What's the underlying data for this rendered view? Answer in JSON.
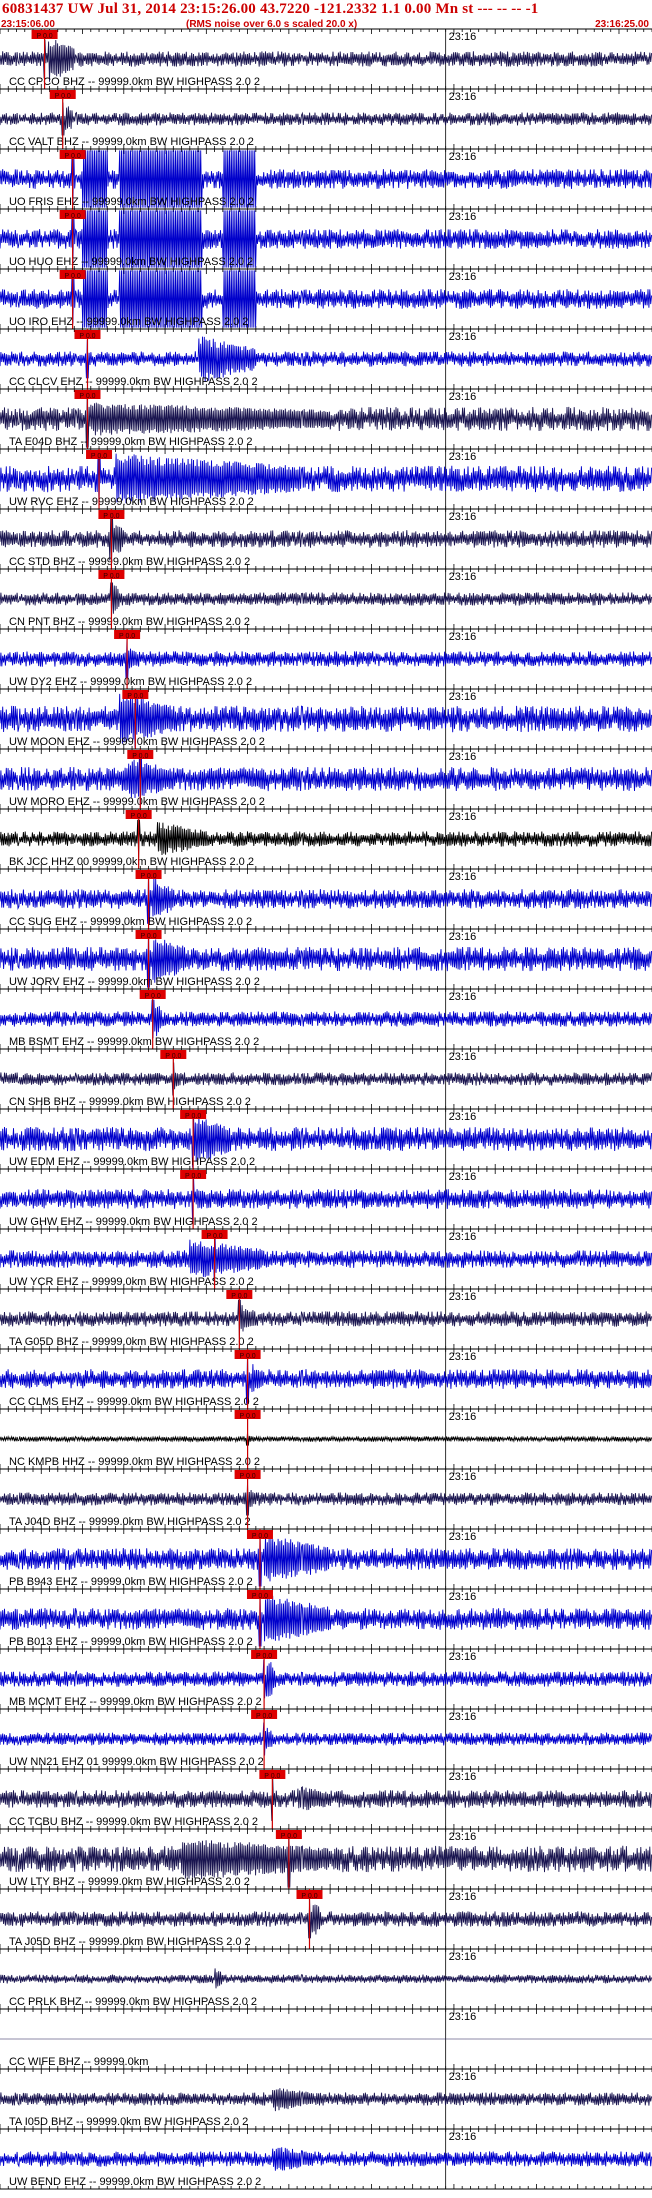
{
  "header": {
    "title": "60831437 UW Jul 31, 2014 23:15:26.00   43.7220 -121.2332  1.1 0.00 Mn st --- -- --   -1",
    "start_time": "23:15:06.00",
    "note": "(RMS noise over 6.0 s scaled 20.0 x)",
    "end_time": "23:16:25.00"
  },
  "chart_data": {
    "type": "seismogram",
    "title": "60831437 UW Jul 31, 2014 23:15:26.00   43.7220 -121.2332  1.1 0.00 Mn st --- -- --   -1",
    "x_start": "23:15:06.00",
    "x_end": "23:16:25.00",
    "minute_tick_label": "23:16",
    "minute_tick_seconds": 54,
    "duration_seconds": 79,
    "colors": {
      "trace": "#0000cc",
      "trace_dark": "#1a1550",
      "trace_black": "#000000",
      "pick": "#cc0000",
      "pick_label": "#dd0000",
      "text": "#000000",
      "frame": "#000000"
    },
    "channels": [
      {
        "label": "CC CPCO BHZ -- 99999.0km BW  HIGHPASS  2.0  2",
        "pick_s": 5.4,
        "pick_label": "P 0.0",
        "color": "dark",
        "amp": 0.35,
        "burst_s": [
          5.8,
          9.0
        ],
        "burst_amp": 1.0
      },
      {
        "label": "CC VALT BHZ -- 99999.0km BW  HIGHPASS  2.0  2",
        "pick_s": 7.6,
        "pick_label": "P 0.0",
        "color": "dark",
        "amp": 0.3,
        "burst_s": [
          7.9,
          8.8
        ],
        "burst_amp": 0.7
      },
      {
        "label": "UO FRIS EHZ -- 99999.0km BW  HIGHPASS  2.0  2",
        "pick_s": 8.8,
        "pick_label": "P 0.0",
        "color": "blue",
        "amp": 0.45,
        "clip_s": [
          [
            10.0,
            13.0
          ],
          [
            14.5,
            24.5
          ],
          [
            27.0,
            31.0
          ]
        ]
      },
      {
        "label": "UO HUO EHZ -- 99999.0km BW  HIGHPASS  2.0  2",
        "pick_s": 8.8,
        "pick_label": "P 0.0",
        "color": "blue",
        "amp": 0.45,
        "clip_s": [
          [
            10.0,
            13.0
          ],
          [
            14.5,
            24.5
          ],
          [
            27.0,
            31.0
          ]
        ]
      },
      {
        "label": "UO IRO EHZ -- 99999.0km BW  HIGHPASS  2.0  2",
        "pick_s": 8.8,
        "pick_label": "P 0.0",
        "color": "blue",
        "amp": 0.45,
        "clip_s": [
          [
            10.0,
            13.0
          ],
          [
            14.5,
            24.5
          ],
          [
            27.0,
            31.0
          ]
        ]
      },
      {
        "label": "CC CLCV EHZ -- 99999.0km BW  HIGHPASS  2.0  2",
        "pick_s": 10.6,
        "pick_label": "P 0.0",
        "color": "blue",
        "amp": 0.35,
        "burst_s": [
          24.0,
          31.0
        ],
        "burst_amp": 1.0
      },
      {
        "label": "TA E04D BHZ -- 99999.0km BW  HIGHPASS  2.0  2",
        "pick_s": 10.6,
        "pick_label": "P 0.0",
        "color": "dark",
        "amp": 0.55,
        "burst_s": [
          11.0,
          40.0
        ],
        "burst_amp": 0.6
      },
      {
        "label": "UW RVC EHZ -- 99999.0km BW  HIGHPASS  2.0  2",
        "pick_s": 12.0,
        "pick_label": "P 0.0",
        "color": "blue",
        "amp": 0.6,
        "burst_s": [
          14.0,
          37.0
        ],
        "burst_amp": 1.0
      },
      {
        "label": "CC STD BHZ -- 99999.0km BW  HIGHPASS  2.0  2",
        "pick_s": 13.5,
        "pick_label": "P 0.0",
        "color": "dark",
        "amp": 0.4,
        "burst_s": [
          13.2,
          15.0
        ],
        "burst_amp": 0.9
      },
      {
        "label": "CN PNT BHZ -- 99999.0km BW  HIGHPASS  2.0  2",
        "pick_s": 13.5,
        "pick_label": "P 0.0",
        "color": "dark",
        "amp": 0.3,
        "burst_s": [
          13.6,
          14.6
        ],
        "burst_amp": 0.7
      },
      {
        "label": "UW DY2 EHZ -- 99999.0km BW  HIGHPASS  2.0  2",
        "pick_s": 15.4,
        "pick_label": "P 0.0",
        "color": "blue",
        "amp": 0.35,
        "burst_s": [
          15.4,
          16.6
        ],
        "burst_amp": 0.5
      },
      {
        "label": "UW MOON EHZ -- 99999.0km BW  HIGHPASS  2.0  2",
        "pick_s": 16.4,
        "pick_label": "P 0.0",
        "color": "blue",
        "amp": 0.6,
        "burst_s": [
          14.5,
          21.0
        ],
        "burst_amp": 1.0
      },
      {
        "label": "UW MORO EHZ -- 99999.0km BW  HIGHPASS  2.0  2",
        "pick_s": 17.0,
        "pick_label": "P 0.0",
        "color": "blue",
        "amp": 0.55,
        "burst_s": [
          15.5,
          21.0
        ],
        "burst_amp": 0.8
      },
      {
        "label": "BK JCC HHZ 00 99999.0km BW  HIGHPASS  2.0  2",
        "pick_s": 16.8,
        "pick_label": "P 0.0",
        "color": "black",
        "amp": 0.35,
        "burst_s": [
          19.0,
          25.0
        ],
        "burst_amp": 0.7
      },
      {
        "label": "CC SUG EHZ -- 99999.0km BW  HIGHPASS  2.0  2",
        "pick_s": 18.0,
        "pick_label": "P 0.0",
        "color": "blue",
        "amp": 0.45,
        "burst_s": [
          18.5,
          21.0
        ],
        "burst_amp": 0.9
      },
      {
        "label": "UW JORV EHZ -- 99999.0km BW  HIGHPASS  2.0  2",
        "pick_s": 18.0,
        "pick_label": "P 0.0",
        "color": "blue",
        "amp": 0.55,
        "burst_s": [
          18.5,
          22.5
        ],
        "burst_amp": 1.0,
        "tick_s": 54
      },
      {
        "label": "MB BSMT EHZ -- 99999.0km BW  HIGHPASS  2.0  2",
        "pick_s": 18.5,
        "pick_label": "P 0.0",
        "color": "blue",
        "amp": 0.35,
        "burst_s": [
          18.6,
          19.6
        ],
        "burst_amp": 0.9
      },
      {
        "label": "CN SHB BHZ -- 99999.0km BW  HIGHPASS  2.0  2",
        "pick_s": 21.0,
        "pick_label": "P 0.0",
        "color": "dark",
        "amp": 0.3,
        "burst_s": [
          21.1,
          22.0
        ],
        "burst_amp": 0.4
      },
      {
        "label": "UW EDM EHZ -- 99999.0km BW  HIGHPASS  2.0  2",
        "pick_s": 23.4,
        "pick_label": "P 0.0",
        "color": "blue",
        "amp": 0.55,
        "burst_s": [
          23.5,
          28.0
        ],
        "burst_amp": 1.0
      },
      {
        "label": "UW GHW EHZ -- 99999.0km BW  HIGHPASS  2.0  2",
        "pick_s": 23.4,
        "pick_label": "P 0.0",
        "color": "blue",
        "amp": 0.45,
        "burst_s": [
          23.8,
          24.8
        ],
        "burst_amp": 0.5
      },
      {
        "label": "UW YCR EHZ -- 99999.0km BW  HIGHPASS  2.0  2",
        "pick_s": 26.0,
        "pick_label": "P 0.0",
        "color": "blue",
        "amp": 0.4,
        "burst_s": [
          23.0,
          32.0
        ],
        "burst_amp": 0.8
      },
      {
        "label": "TA G05D BHZ -- 99999.0km BW  HIGHPASS  2.0  2",
        "pick_s": 29.0,
        "pick_label": "P 0.0",
        "color": "dark",
        "amp": 0.35,
        "burst_s": [
          29.0,
          31.0
        ],
        "burst_amp": 0.6
      },
      {
        "label": "CC CLMS EHZ -- 99999.0km BW  HIGHPASS  2.0  2",
        "pick_s": 30.0,
        "pick_label": "P 0.0",
        "color": "blue",
        "amp": 0.45,
        "burst_s": [
          30.5,
          32.0
        ],
        "burst_amp": 0.6
      },
      {
        "label": "NC KMPB HHZ -- 99999.0km BW  HIGHPASS  2.0  2",
        "pick_s": 30.0,
        "pick_label": "P 0.0",
        "color": "black",
        "amp": 0.12,
        "burst_s": [
          30.0,
          31.0
        ],
        "burst_amp": 0.15
      },
      {
        "label": "TA J04D BHZ -- 99999.0km BW  HIGHPASS  2.0  2",
        "pick_s": 30.0,
        "pick_label": "P 0.0",
        "color": "dark",
        "amp": 0.3,
        "burst_s": [
          30.2,
          31.0
        ],
        "burst_amp": 0.4
      },
      {
        "label": "PB B943 EHZ -- 99999.0km BW  HIGHPASS  2.0  2",
        "pick_s": 31.5,
        "pick_label": "P 0.0",
        "color": "blue",
        "amp": 0.5,
        "burst_s": [
          32.0,
          40.0
        ],
        "burst_amp": 1.0
      },
      {
        "label": "PB B013 EHZ -- 99999.0km BW  HIGHPASS  2.0  2",
        "pick_s": 31.5,
        "pick_label": "P 0.0",
        "color": "blue",
        "amp": 0.5,
        "burst_s": [
          32.0,
          40.0
        ],
        "burst_amp": 1.0
      },
      {
        "label": "MB MCMT EHZ -- 99999.0km BW  HIGHPASS  2.0  2",
        "pick_s": 32.0,
        "pick_label": "P 0.0",
        "color": "blue",
        "amp": 0.35,
        "burst_s": [
          32.2,
          33.4
        ],
        "burst_amp": 1.0
      },
      {
        "label": "UW NN21 EHZ 01 99999.0km BW  HIGHPASS  2.0  2",
        "pick_s": 32.0,
        "pick_label": "P 0.0",
        "color": "blue",
        "amp": 0.3,
        "burst_s": [
          32.0,
          33.0
        ],
        "burst_amp": 0.6
      },
      {
        "label": "CC TCBU BHZ -- 99999.0km BW  HIGHPASS  2.0  2",
        "pick_s": 33.0,
        "pick_label": "P 0.0",
        "color": "dark",
        "amp": 0.4,
        "burst_s": [
          36.0,
          40.0
        ],
        "burst_amp": 0.5
      },
      {
        "label": "UW LTY BHZ -- 99999.0km BW  HIGHPASS  2.0  2",
        "pick_s": 35.0,
        "pick_label": "P 0.0",
        "color": "dark",
        "amp": 0.6,
        "burst_s": [
          22.0,
          40.0
        ],
        "burst_amp": 0.8
      },
      {
        "label": "TA J05D BHZ -- 99999.0km BW  HIGHPASS  2.0  2",
        "pick_s": 37.5,
        "pick_label": "P 0.0",
        "color": "dark",
        "amp": 0.35,
        "burst_s": [
          37.8,
          39.0
        ],
        "burst_amp": 0.8
      },
      {
        "label": "CC PRLK BHZ -- 99999.0km BW  HIGHPASS  2.0  2",
        "pick_s": null,
        "color": "dark",
        "amp": 0.2,
        "burst_s": [
          26.0,
          27.0
        ],
        "burst_amp": 0.5
      },
      {
        "label": "CC WIFE BHZ -- 99999.0km",
        "pick_s": null,
        "color": "dark",
        "amp": 0.0
      },
      {
        "label": "TA I05D BHZ -- 99999.0km BW  HIGHPASS  2.0  2",
        "pick_s": null,
        "color": "dark",
        "amp": 0.3,
        "burst_s": [
          33.0,
          38.0
        ],
        "burst_amp": 0.5
      },
      {
        "label": "UW BEND EHZ -- 99999.0km BW  HIGHPASS  2.0  2",
        "pick_s": null,
        "color": "blue",
        "amp": 0.35,
        "burst_s": [
          33.0,
          38.0
        ],
        "burst_amp": 0.5
      }
    ]
  }
}
